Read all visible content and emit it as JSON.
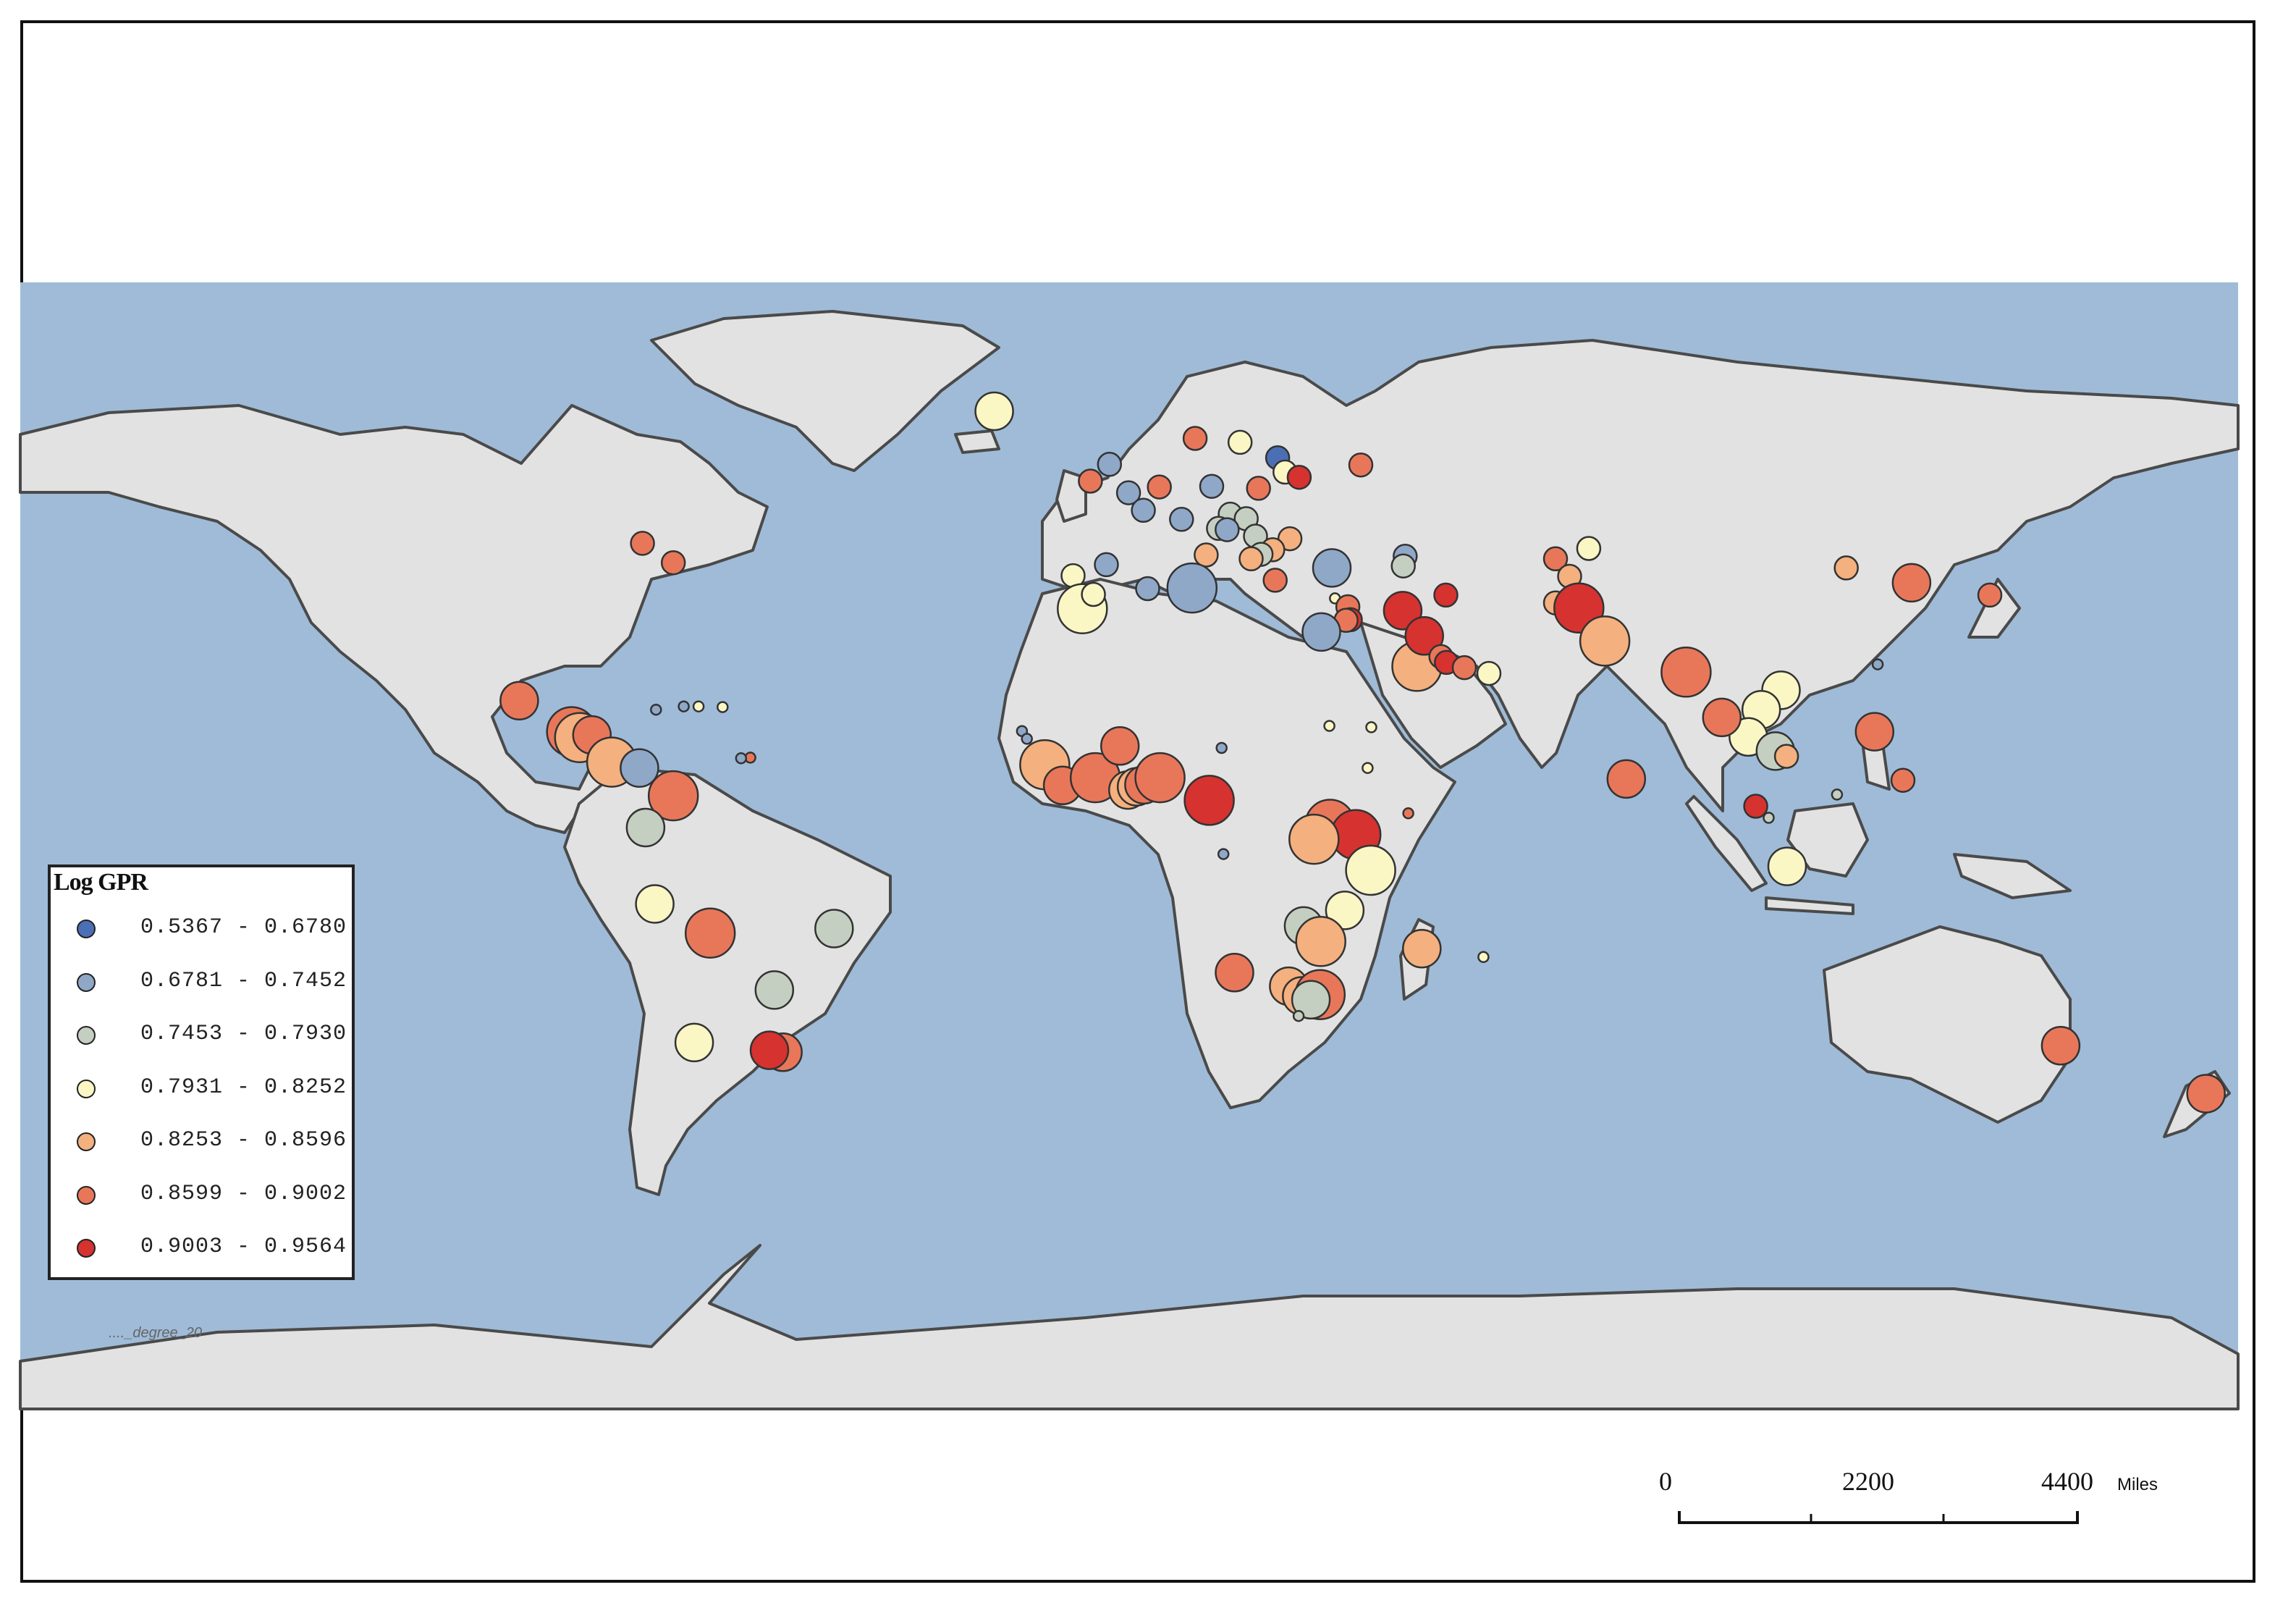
{
  "legend": {
    "title": "Log GPR",
    "classes": [
      {
        "label": "0.5367 - 0.6780",
        "color": "#4a6fb5"
      },
      {
        "label": "0.6781 - 0.7452",
        "color": "#8fa8c8"
      },
      {
        "label": "0.7453 - 0.7930",
        "color": "#c4cfc1"
      },
      {
        "label": "0.7931 - 0.8252",
        "color": "#fbf7c5"
      },
      {
        "label": "0.8253 - 0.8596",
        "color": "#f4b07e"
      },
      {
        "label": "0.8599 - 0.9002",
        "color": "#e8775a"
      },
      {
        "label": "0.9003 - 0.9564",
        "color": "#d63230"
      }
    ]
  },
  "source_label": "...._degree_20",
  "scale": {
    "ticks": [
      "0",
      "2200",
      "4400"
    ],
    "unit": "Miles"
  },
  "colors": {
    "ocean": "#9fbbd7",
    "land": "#e2e2e2",
    "coast": "#4a4a4a"
  },
  "points": [
    {
      "lon": -74,
      "lat": 40.7,
      "c": 5,
      "s": 1
    },
    {
      "lon": -79,
      "lat": 43.7,
      "c": 5,
      "s": 1
    },
    {
      "lon": -99,
      "lat": 19.4,
      "c": 5,
      "s": 2
    },
    {
      "lon": -90.5,
      "lat": 14.6,
      "c": 5,
      "s": 3
    },
    {
      "lon": -89.2,
      "lat": 13.7,
      "c": 4,
      "s": 3
    },
    {
      "lon": -87.2,
      "lat": 14.1,
      "c": 5,
      "s": 2
    },
    {
      "lon": -84,
      "lat": 9.9,
      "c": 4,
      "s": 3
    },
    {
      "lon": -79.5,
      "lat": 9,
      "c": 1,
      "s": 2
    },
    {
      "lon": -74,
      "lat": 4.7,
      "c": 5,
      "s": 3
    },
    {
      "lon": -78.5,
      "lat": -0.2,
      "c": 2,
      "s": 2
    },
    {
      "lon": -77,
      "lat": -12,
      "c": 3,
      "s": 2
    },
    {
      "lon": -68,
      "lat": -16.5,
      "c": 5,
      "s": 3
    },
    {
      "lon": -47.9,
      "lat": -15.8,
      "c": 2,
      "s": 2
    },
    {
      "lon": -57.6,
      "lat": -25.3,
      "c": 2,
      "s": 2
    },
    {
      "lon": -70.6,
      "lat": -33.4,
      "c": 3,
      "s": 2
    },
    {
      "lon": -56.2,
      "lat": -34.9,
      "c": 5,
      "s": 2
    },
    {
      "lon": -58.4,
      "lat": -34.6,
      "c": 6,
      "s": 2
    },
    {
      "lon": -61.5,
      "lat": 10.6,
      "c": 5,
      "s": 0
    },
    {
      "lon": -72.3,
      "lat": 18.5,
      "c": 1,
      "s": 0
    },
    {
      "lon": -76.8,
      "lat": 18,
      "c": 1,
      "s": 0
    },
    {
      "lon": -69.9,
      "lat": 18.5,
      "c": 3,
      "s": 0
    },
    {
      "lon": -66,
      "lat": 18.4,
      "c": 3,
      "s": 0
    },
    {
      "lon": -63,
      "lat": 10.5,
      "c": 1,
      "s": 0
    },
    {
      "lon": -21.9,
      "lat": 64.1,
      "c": 3,
      "s": 2
    },
    {
      "lon": -6.3,
      "lat": 53.3,
      "c": 5,
      "s": 1
    },
    {
      "lon": -3.2,
      "lat": 55.9,
      "c": 1,
      "s": 1
    },
    {
      "lon": -0.1,
      "lat": 51.5,
      "c": 1,
      "s": 1
    },
    {
      "lon": 2.3,
      "lat": 48.8,
      "c": 1,
      "s": 1
    },
    {
      "lon": 4.9,
      "lat": 52.4,
      "c": 5,
      "s": 1
    },
    {
      "lon": 8.5,
      "lat": 47.4,
      "c": 1,
      "s": 1
    },
    {
      "lon": 13.4,
      "lat": 52.5,
      "c": 1,
      "s": 1
    },
    {
      "lon": 10.7,
      "lat": 59.9,
      "c": 5,
      "s": 1
    },
    {
      "lon": 18,
      "lat": 59.3,
      "c": 3,
      "s": 1
    },
    {
      "lon": 24.1,
      "lat": 56.9,
      "c": 0,
      "s": 1
    },
    {
      "lon": 21,
      "lat": 52.2,
      "c": 5,
      "s": 1
    },
    {
      "lon": 25.3,
      "lat": 54.7,
      "c": 3,
      "s": 1
    },
    {
      "lon": 27.6,
      "lat": 53.9,
      "c": 6,
      "s": 1
    },
    {
      "lon": 37.6,
      "lat": 55.8,
      "c": 5,
      "s": 1
    },
    {
      "lon": 16.4,
      "lat": 48.2,
      "c": 2,
      "s": 1
    },
    {
      "lon": 19,
      "lat": 47.5,
      "c": 2,
      "s": 1
    },
    {
      "lon": 14.5,
      "lat": 46,
      "c": 2,
      "s": 1
    },
    {
      "lon": 15.9,
      "lat": 45.8,
      "c": 1,
      "s": 1
    },
    {
      "lon": 20.5,
      "lat": 44.8,
      "c": 2,
      "s": 1
    },
    {
      "lon": 26.1,
      "lat": 44.4,
      "c": 4,
      "s": 1
    },
    {
      "lon": 23.3,
      "lat": 42.7,
      "c": 4,
      "s": 1
    },
    {
      "lon": 21.4,
      "lat": 42,
      "c": 2,
      "s": 1
    },
    {
      "lon": 19.8,
      "lat": 41.3,
      "c": 4,
      "s": 1
    },
    {
      "lon": 23.7,
      "lat": 38,
      "c": 5,
      "s": 1
    },
    {
      "lon": 12.5,
      "lat": 41.9,
      "c": 4,
      "s": 1
    },
    {
      "lon": -9.1,
      "lat": 38.7,
      "c": 3,
      "s": 1
    },
    {
      "lon": -3.7,
      "lat": 40.4,
      "c": 1,
      "s": 1
    },
    {
      "lon": 32.9,
      "lat": 39.9,
      "c": 1,
      "s": 2
    },
    {
      "lon": 44.8,
      "lat": 41.7,
      "c": 1,
      "s": 1
    },
    {
      "lon": 44.5,
      "lat": 40.2,
      "c": 2,
      "s": 1
    },
    {
      "lon": 33.4,
      "lat": 35.2,
      "c": 3,
      "s": 0
    },
    {
      "lon": 35.5,
      "lat": 33.9,
      "c": 5,
      "s": 1
    },
    {
      "lon": 35.9,
      "lat": 31.9,
      "c": 6,
      "s": 1
    },
    {
      "lon": 35.2,
      "lat": 31.8,
      "c": 5,
      "s": 1
    },
    {
      "lon": 31.2,
      "lat": 30,
      "c": 1,
      "s": 2
    },
    {
      "lon": 44.4,
      "lat": 33.3,
      "c": 6,
      "s": 2
    },
    {
      "lon": 46.7,
      "lat": 24.7,
      "c": 4,
      "s": 3
    },
    {
      "lon": 51.4,
      "lat": 35.7,
      "c": 6,
      "s": 1
    },
    {
      "lon": 47.9,
      "lat": 29.4,
      "c": 6,
      "s": 2
    },
    {
      "lon": 50.6,
      "lat": 26.2,
      "c": 5,
      "s": 1
    },
    {
      "lon": 51.5,
      "lat": 25.3,
      "c": 6,
      "s": 1
    },
    {
      "lon": 54.4,
      "lat": 24.5,
      "c": 5,
      "s": 1
    },
    {
      "lon": 58.4,
      "lat": 23.6,
      "c": 3,
      "s": 1
    },
    {
      "lon": 69.2,
      "lat": 41.3,
      "c": 5,
      "s": 1
    },
    {
      "lon": 74.6,
      "lat": 42.9,
      "c": 3,
      "s": 1
    },
    {
      "lon": 71.5,
      "lat": 38.6,
      "c": 4,
      "s": 1
    },
    {
      "lon": 69.2,
      "lat": 34.5,
      "c": 4,
      "s": 1
    },
    {
      "lon": 73,
      "lat": 33.7,
      "c": 6,
      "s": 3
    },
    {
      "lon": 77.2,
      "lat": 28.6,
      "c": 4,
      "s": 3
    },
    {
      "lon": 90.4,
      "lat": 23.8,
      "c": 5,
      "s": 3
    },
    {
      "lon": 80.7,
      "lat": 7.3,
      "c": 5,
      "s": 2
    },
    {
      "lon": 116.4,
      "lat": 39.9,
      "c": 4,
      "s": 1
    },
    {
      "lon": 127,
      "lat": 37.6,
      "c": 5,
      "s": 2
    },
    {
      "lon": 139.7,
      "lat": 35.7,
      "c": 5,
      "s": 1
    },
    {
      "lon": 121.5,
      "lat": 25,
      "c": 1,
      "s": 0
    },
    {
      "lon": 105.8,
      "lat": 21,
      "c": 3,
      "s": 2
    },
    {
      "lon": 102.6,
      "lat": 18,
      "c": 3,
      "s": 2
    },
    {
      "lon": 100.5,
      "lat": 13.8,
      "c": 3,
      "s": 2
    },
    {
      "lon": 96.2,
      "lat": 16.8,
      "c": 5,
      "s": 2
    },
    {
      "lon": 104.9,
      "lat": 11.6,
      "c": 2,
      "s": 2
    },
    {
      "lon": 106.7,
      "lat": 10.8,
      "c": 4,
      "s": 1
    },
    {
      "lon": 101.7,
      "lat": 3.1,
      "c": 6,
      "s": 1
    },
    {
      "lon": 103.8,
      "lat": 1.3,
      "c": 2,
      "s": 0
    },
    {
      "lon": 106.8,
      "lat": -6.2,
      "c": 3,
      "s": 2
    },
    {
      "lon": 121,
      "lat": 14.6,
      "c": 5,
      "s": 2
    },
    {
      "lon": 114.9,
      "lat": 4.9,
      "c": 2,
      "s": 0
    },
    {
      "lon": 125.6,
      "lat": 7.1,
      "c": 5,
      "s": 1
    },
    {
      "lon": 151.2,
      "lat": -33.9,
      "c": 5,
      "s": 2
    },
    {
      "lon": 174.8,
      "lat": -41.3,
      "c": 5,
      "s": 2
    },
    {
      "lon": -7.6,
      "lat": 33.6,
      "c": 3,
      "s": 3
    },
    {
      "lon": -5.8,
      "lat": 35.8,
      "c": 3,
      "s": 1
    },
    {
      "lon": 3,
      "lat": 36.7,
      "c": 1,
      "s": 1
    },
    {
      "lon": 10.2,
      "lat": 36.8,
      "c": 1,
      "s": 3
    },
    {
      "lon": -17.4,
      "lat": 14.7,
      "c": 1,
      "s": 0
    },
    {
      "lon": -16.6,
      "lat": 13.5,
      "c": 1,
      "s": 0
    },
    {
      "lon": -13.7,
      "lat": 9.5,
      "c": 4,
      "s": 3
    },
    {
      "lon": -10.8,
      "lat": 6.3,
      "c": 5,
      "s": 2
    },
    {
      "lon": -5.5,
      "lat": 7.5,
      "c": 5,
      "s": 3
    },
    {
      "lon": -1.5,
      "lat": 12.4,
      "c": 5,
      "s": 2
    },
    {
      "lon": -0.2,
      "lat": 5.6,
      "c": 4,
      "s": 2
    },
    {
      "lon": 1.2,
      "lat": 6.1,
      "c": 4,
      "s": 2
    },
    {
      "lon": 2.4,
      "lat": 6.4,
      "c": 5,
      "s": 2
    },
    {
      "lon": 5,
      "lat": 7.5,
      "c": 5,
      "s": 3
    },
    {
      "lon": 13,
      "lat": 4,
      "c": 6,
      "s": 3
    },
    {
      "lon": 15,
      "lat": 12.1,
      "c": 1,
      "s": 0
    },
    {
      "lon": 32.5,
      "lat": 15.5,
      "c": 3,
      "s": 0
    },
    {
      "lon": 38.7,
      "lat": 9,
      "c": 3,
      "s": 0
    },
    {
      "lon": 39.3,
      "lat": 15.3,
      "c": 3,
      "s": 0
    },
    {
      "lon": 32.6,
      "lat": 0.3,
      "c": 5,
      "s": 3
    },
    {
      "lon": 36.8,
      "lat": -1.3,
      "c": 6,
      "s": 3
    },
    {
      "lon": 30,
      "lat": -2,
      "c": 4,
      "s": 3
    },
    {
      "lon": 39.2,
      "lat": -6.8,
      "c": 3,
      "s": 3
    },
    {
      "lon": 35,
      "lat": -13,
      "c": 3,
      "s": 2
    },
    {
      "lon": 28.3,
      "lat": -15.4,
      "c": 2,
      "s": 2
    },
    {
      "lon": 31.1,
      "lat": -17.8,
      "c": 4,
      "s": 3
    },
    {
      "lon": 47.5,
      "lat": -18.9,
      "c": 4,
      "s": 2
    },
    {
      "lon": 17.1,
      "lat": -22.6,
      "c": 5,
      "s": 2
    },
    {
      "lon": 25.9,
      "lat": -24.7,
      "c": 4,
      "s": 2
    },
    {
      "lon": 28,
      "lat": -26.2,
      "c": 4,
      "s": 2
    },
    {
      "lon": 31,
      "lat": -26,
      "c": 5,
      "s": 3
    },
    {
      "lon": 29.5,
      "lat": -26.8,
      "c": 2,
      "s": 2
    },
    {
      "lon": 27.5,
      "lat": -29.3,
      "c": 2,
      "s": 0
    },
    {
      "lon": 15.3,
      "lat": -4.3,
      "c": 1,
      "s": 0
    },
    {
      "lon": 57.5,
      "lat": -20.2,
      "c": 3,
      "s": 0
    },
    {
      "lon": 45.3,
      "lat": 2,
      "c": 5,
      "s": 0
    }
  ]
}
